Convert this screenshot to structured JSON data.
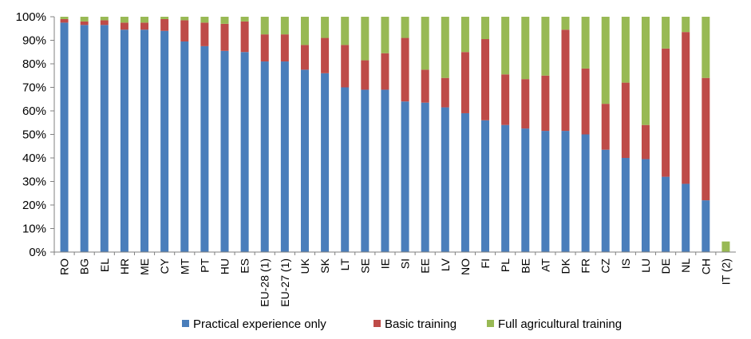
{
  "chart_data": {
    "type": "bar",
    "stacked": true,
    "categories": [
      "RO",
      "BG",
      "EL",
      "HR",
      "ME",
      "CY",
      "MT",
      "PT",
      "HU",
      "ES",
      "EU-28 (1)",
      "EU-27 (1)",
      "UK",
      "SK",
      "LT",
      "SE",
      "IE",
      "SI",
      "EE",
      "LV",
      "NO",
      "FI",
      "PL",
      "BE",
      "AT",
      "DK",
      "FR",
      "CZ",
      "IS",
      "LU",
      "DE",
      "NL",
      "CH",
      "IT (2)"
    ],
    "series": [
      {
        "name": "Practical experience only",
        "color": "#4a7ebb",
        "values": [
          97.5,
          96.5,
          96.5,
          94.5,
          94.5,
          94,
          89.5,
          87.5,
          85.5,
          85,
          81,
          81,
          77.5,
          76,
          70,
          69,
          69,
          64,
          63.5,
          61.5,
          59,
          56,
          54,
          52.5,
          51.5,
          51.5,
          50,
          43.5,
          40,
          39.5,
          32,
          29,
          22,
          0
        ]
      },
      {
        "name": "Basic training",
        "color": "#be4b48",
        "values": [
          1.5,
          1.5,
          2,
          3,
          3,
          5,
          9,
          10,
          11.5,
          13,
          11.5,
          11.5,
          10.5,
          15,
          18,
          12.5,
          15.5,
          27,
          14,
          12.5,
          26,
          34.5,
          21.5,
          21,
          23.5,
          43,
          28,
          19.5,
          32,
          14.5,
          54.5,
          64.5,
          52,
          0
        ]
      },
      {
        "name": "Full agricultural training",
        "color": "#98b954",
        "values": [
          1,
          2,
          1.5,
          2.5,
          2.5,
          1,
          1.5,
          2.5,
          3,
          2,
          7.5,
          7.5,
          12,
          9,
          12,
          18.5,
          15.5,
          9,
          22.5,
          26,
          15,
          9.5,
          24.5,
          26.5,
          25,
          5.5,
          22,
          37,
          28,
          46,
          13.5,
          6.5,
          26,
          4.5
        ]
      }
    ],
    "yticks": [
      "0%",
      "10%",
      "20%",
      "30%",
      "40%",
      "50%",
      "60%",
      "70%",
      "80%",
      "90%",
      "100%"
    ],
    "ylim": [
      0,
      100
    ],
    "grid": false,
    "legend_position": "bottom",
    "title": "",
    "xlabel": "",
    "ylabel": ""
  }
}
